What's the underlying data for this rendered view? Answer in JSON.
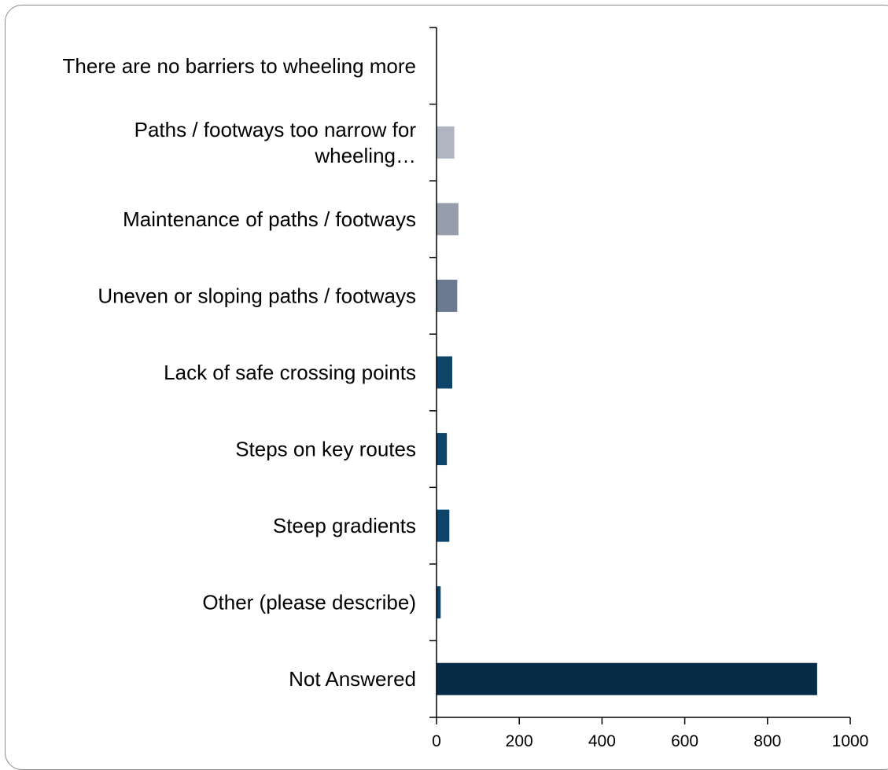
{
  "chart_data": {
    "type": "bar",
    "orientation": "horizontal",
    "title": "",
    "xlabel": "",
    "ylabel": "",
    "xlim": [
      0,
      1000
    ],
    "xticks": [
      0,
      200,
      400,
      600,
      800,
      1000
    ],
    "grid": false,
    "legend": "none",
    "categories": [
      {
        "lines": [
          "There are no barriers to wheeling more"
        ],
        "value": 0,
        "color": "#c9ced6"
      },
      {
        "lines": [
          "Paths / footways too narrow for",
          "wheeling…"
        ],
        "value": 43,
        "color": "#b0b6c1"
      },
      {
        "lines": [
          "Maintenance of paths / footways"
        ],
        "value": 53,
        "color": "#969eac"
      },
      {
        "lines": [
          "Uneven or sloping paths / footways"
        ],
        "value": 50,
        "color": "#6b7a90"
      },
      {
        "lines": [
          "Lack of safe crossing points"
        ],
        "value": 38,
        "color": "#0e4468"
      },
      {
        "lines": [
          "Steps on key routes"
        ],
        "value": 25,
        "color": "#0e4468"
      },
      {
        "lines": [
          "Steep gradients"
        ],
        "value": 31,
        "color": "#0e4468"
      },
      {
        "lines": [
          "Other (please describe)"
        ],
        "value": 10,
        "color": "#0e4468"
      },
      {
        "lines": [
          "Not Answered"
        ],
        "value": 920,
        "color": "#062c48"
      }
    ]
  }
}
